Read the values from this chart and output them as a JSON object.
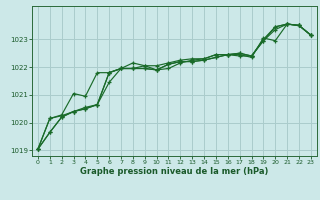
{
  "xlabel": "Graphe pression niveau de la mer (hPa)",
  "background_color": "#cce8e8",
  "grid_color": "#aacccc",
  "line_color": "#1a6b2a",
  "xlim": [
    -0.5,
    23.5
  ],
  "ylim": [
    1018.8,
    1024.2
  ],
  "yticks": [
    1019,
    1020,
    1021,
    1022,
    1023
  ],
  "xticks": [
    0,
    1,
    2,
    3,
    4,
    5,
    6,
    7,
    8,
    9,
    10,
    11,
    12,
    13,
    14,
    15,
    16,
    17,
    18,
    19,
    20,
    21,
    22,
    23
  ],
  "series": [
    [
      1019.05,
      1019.65,
      1020.2,
      1020.4,
      1020.5,
      1020.65,
      1021.8,
      1021.95,
      1021.95,
      1021.95,
      1021.9,
      1022.1,
      1022.2,
      1022.2,
      1022.25,
      1022.35,
      1022.45,
      1022.5,
      1022.4,
      1022.95,
      1023.45,
      1023.55,
      1023.5,
      1023.15
    ],
    [
      1019.05,
      1019.65,
      1020.2,
      1020.4,
      1020.5,
      1020.65,
      1021.8,
      1021.95,
      1021.95,
      1021.95,
      1021.9,
      1022.1,
      1022.2,
      1022.2,
      1022.25,
      1022.35,
      1022.45,
      1022.5,
      1022.4,
      1023.0,
      1023.45,
      1023.55,
      1023.5,
      1023.15
    ],
    [
      1019.05,
      1020.15,
      1020.25,
      1020.4,
      1020.55,
      1020.65,
      1021.45,
      1021.95,
      1021.95,
      1022.05,
      1021.9,
      1021.95,
      1022.15,
      1022.25,
      1022.3,
      1022.45,
      1022.45,
      1022.45,
      1022.35,
      1023.05,
      1022.95,
      1023.55,
      1023.5,
      1023.15
    ],
    [
      1019.05,
      1020.15,
      1020.28,
      1021.05,
      1020.95,
      1021.8,
      1021.8,
      1021.95,
      1022.15,
      1022.05,
      1022.05,
      1022.15,
      1022.25,
      1022.3,
      1022.3,
      1022.45,
      1022.45,
      1022.4,
      1022.4,
      1022.95,
      1023.35,
      1023.55,
      1023.5,
      1023.15
    ]
  ]
}
